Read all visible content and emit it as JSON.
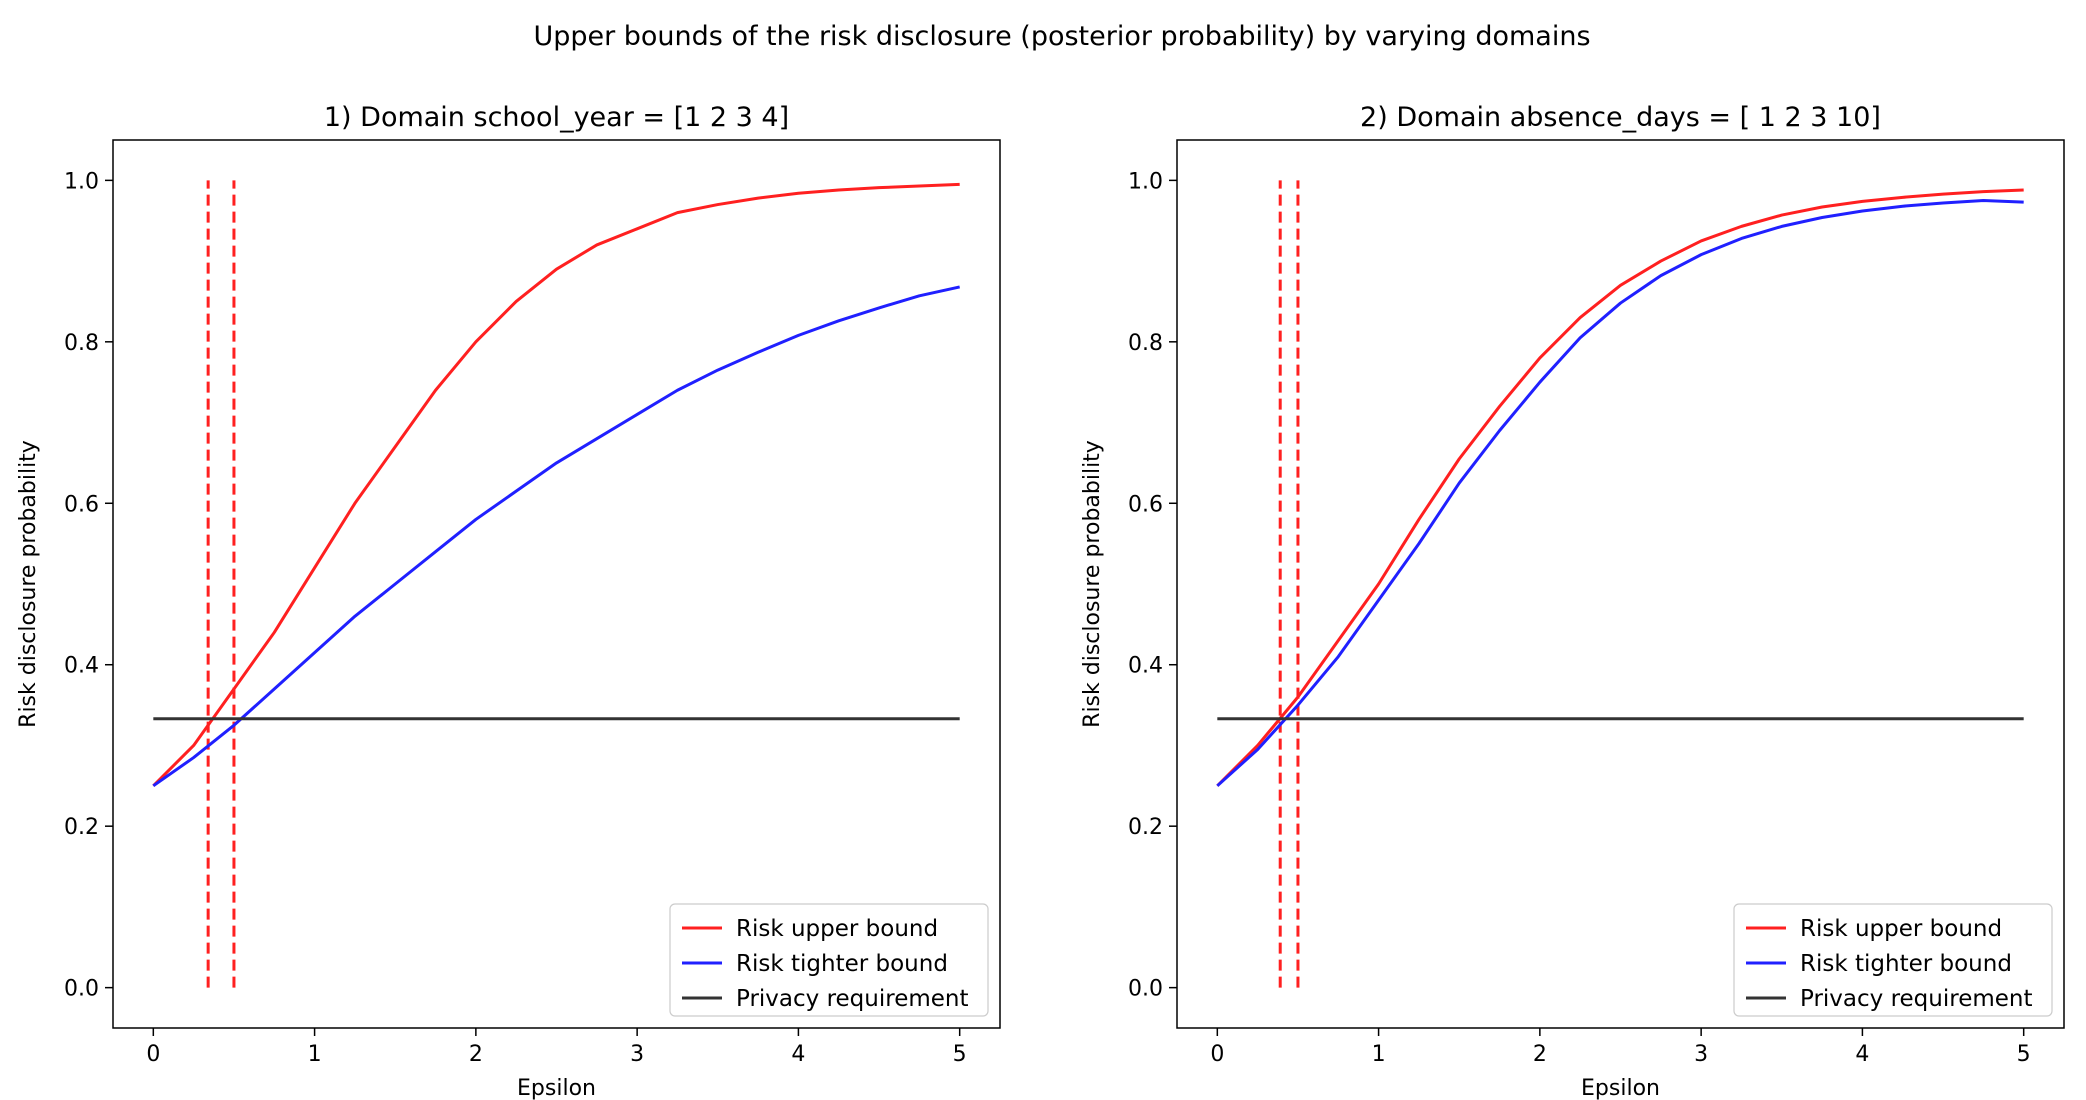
{
  "suptitle": "Upper bounds of the risk disclosure (posterior probability) by varying domains",
  "colors": {
    "upper": "#ff2020",
    "tighter": "#2020ff",
    "privacy": "#333333",
    "vline": "#ff2020"
  },
  "chart_data": [
    {
      "type": "line",
      "title": "1) Domain school_year = [1 2 3 4]",
      "xlabel": "Epsilon",
      "ylabel": "Risk disclosure probability",
      "xlim": [
        -0.25,
        5.25
      ],
      "ylim": [
        -0.05,
        1.05
      ],
      "xticks": [
        0,
        1,
        2,
        3,
        4,
        5
      ],
      "xtick_labels": [
        "0",
        "1",
        "2",
        "3",
        "4",
        "5"
      ],
      "yticks": [
        0.0,
        0.2,
        0.4,
        0.6,
        0.8,
        1.0
      ],
      "ytick_labels": [
        "0.0",
        "0.2",
        "0.4",
        "0.6",
        "0.8",
        "1.0"
      ],
      "grid": false,
      "legend_position": "lower-right",
      "x": [
        0,
        0.25,
        0.5,
        0.75,
        1.0,
        1.25,
        1.5,
        1.75,
        2.0,
        2.25,
        2.5,
        2.75,
        3.0,
        3.25,
        3.5,
        3.75,
        4.0,
        4.25,
        4.5,
        4.75,
        5.0
      ],
      "series": [
        {
          "name": "Risk upper bound",
          "color_key": "upper",
          "style": "solid",
          "values": [
            0.25,
            0.3,
            0.37,
            0.44,
            0.52,
            0.6,
            0.67,
            0.74,
            0.8,
            0.85,
            0.89,
            0.92,
            0.94,
            0.96,
            0.97,
            0.978,
            0.984,
            0.988,
            0.991,
            0.993,
            0.995
          ]
        },
        {
          "name": "Risk tighter bound",
          "color_key": "tighter",
          "style": "solid",
          "values": [
            0.25,
            0.285,
            0.325,
            0.37,
            0.415,
            0.46,
            0.5,
            0.54,
            0.58,
            0.615,
            0.65,
            0.68,
            0.71,
            0.74,
            0.765,
            0.787,
            0.808,
            0.826,
            0.842,
            0.857,
            0.868
          ]
        },
        {
          "name": "Privacy requirement",
          "color_key": "privacy",
          "style": "solid",
          "values": [
            0.333,
            0.333,
            0.333,
            0.333,
            0.333,
            0.333,
            0.333,
            0.333,
            0.333,
            0.333,
            0.333,
            0.333,
            0.333,
            0.333,
            0.333,
            0.333,
            0.333,
            0.333,
            0.333,
            0.333,
            0.333
          ]
        }
      ],
      "vlines": [
        {
          "x": 0.34,
          "ymin": 0.0,
          "ymax": 1.0
        },
        {
          "x": 0.5,
          "ymin": 0.0,
          "ymax": 1.0
        }
      ]
    },
    {
      "type": "line",
      "title": "2) Domain absence_days = [ 1  2  3 10]",
      "xlabel": "Epsilon",
      "ylabel": "Risk disclosure probability",
      "xlim": [
        -0.25,
        5.25
      ],
      "ylim": [
        -0.05,
        1.05
      ],
      "xticks": [
        0,
        1,
        2,
        3,
        4,
        5
      ],
      "xtick_labels": [
        "0",
        "1",
        "2",
        "3",
        "4",
        "5"
      ],
      "yticks": [
        0.0,
        0.2,
        0.4,
        0.6,
        0.8,
        1.0
      ],
      "ytick_labels": [
        "0.0",
        "0.2",
        "0.4",
        "0.6",
        "0.8",
        "1.0"
      ],
      "grid": false,
      "legend_position": "lower-right",
      "x": [
        0,
        0.25,
        0.5,
        0.75,
        1.0,
        1.25,
        1.5,
        1.75,
        2.0,
        2.25,
        2.5,
        2.75,
        3.0,
        3.25,
        3.5,
        3.75,
        4.0,
        4.25,
        4.5,
        4.75,
        5.0
      ],
      "series": [
        {
          "name": "Risk upper bound",
          "color_key": "upper",
          "style": "solid",
          "values": [
            0.25,
            0.3,
            0.36,
            0.43,
            0.5,
            0.58,
            0.655,
            0.72,
            0.78,
            0.83,
            0.87,
            0.9,
            0.925,
            0.943,
            0.957,
            0.967,
            0.974,
            0.979,
            0.983,
            0.986,
            0.988
          ]
        },
        {
          "name": "Risk tighter bound",
          "color_key": "tighter",
          "style": "solid",
          "values": [
            0.25,
            0.295,
            0.35,
            0.41,
            0.48,
            0.55,
            0.625,
            0.69,
            0.75,
            0.805,
            0.848,
            0.882,
            0.908,
            0.928,
            0.943,
            0.954,
            0.962,
            0.968,
            0.972,
            0.975,
            0.973
          ]
        },
        {
          "name": "Privacy requirement",
          "color_key": "privacy",
          "style": "solid",
          "values": [
            0.333,
            0.333,
            0.333,
            0.333,
            0.333,
            0.333,
            0.333,
            0.333,
            0.333,
            0.333,
            0.333,
            0.333,
            0.333,
            0.333,
            0.333,
            0.333,
            0.333,
            0.333,
            0.333,
            0.333,
            0.333
          ]
        }
      ],
      "vlines": [
        {
          "x": 0.39,
          "ymin": 0.0,
          "ymax": 1.0
        },
        {
          "x": 0.5,
          "ymin": 0.0,
          "ymax": 1.0
        }
      ]
    }
  ]
}
